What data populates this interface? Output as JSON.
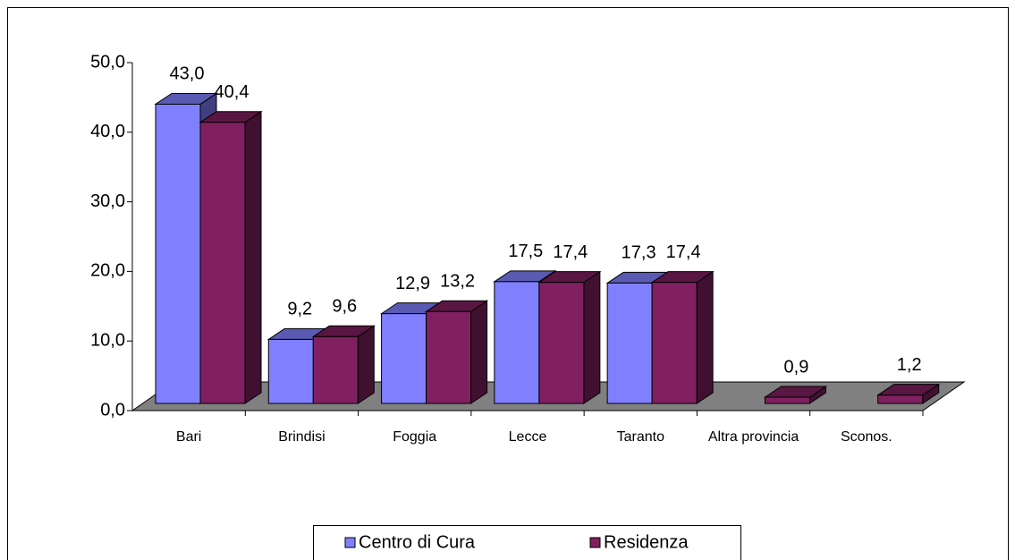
{
  "chart_data": {
    "type": "bar3d",
    "categories": [
      "Bari",
      "Brindisi",
      "Foggia",
      "Lecce",
      "Taranto",
      "Altra provincia",
      "Sconos."
    ],
    "series": [
      {
        "name": "Centro di Cura",
        "color": "#8080ff",
        "values": [
          43.0,
          9.2,
          12.9,
          17.5,
          17.3,
          null,
          null
        ],
        "value_labels": [
          "43,0",
          "9,2",
          "12,9",
          "17,5",
          "17,3",
          null,
          null
        ]
      },
      {
        "name": "Residenza",
        "color": "#802060",
        "values": [
          40.4,
          9.6,
          13.2,
          17.4,
          17.4,
          0.9,
          1.2
        ],
        "value_labels": [
          "40,4",
          "9,6",
          "13,2",
          "17,4",
          "17,4",
          "0,9",
          "1,2"
        ]
      }
    ],
    "ylim": [
      0,
      50
    ],
    "yticks": [
      {
        "value": 0,
        "label": "0,0"
      },
      {
        "value": 10,
        "label": "10,0"
      },
      {
        "value": 20,
        "label": "20,0"
      },
      {
        "value": 30,
        "label": "30,0"
      },
      {
        "value": 40,
        "label": "40,0"
      },
      {
        "value": 50,
        "label": "50,0"
      }
    ],
    "legend": "bottom"
  }
}
